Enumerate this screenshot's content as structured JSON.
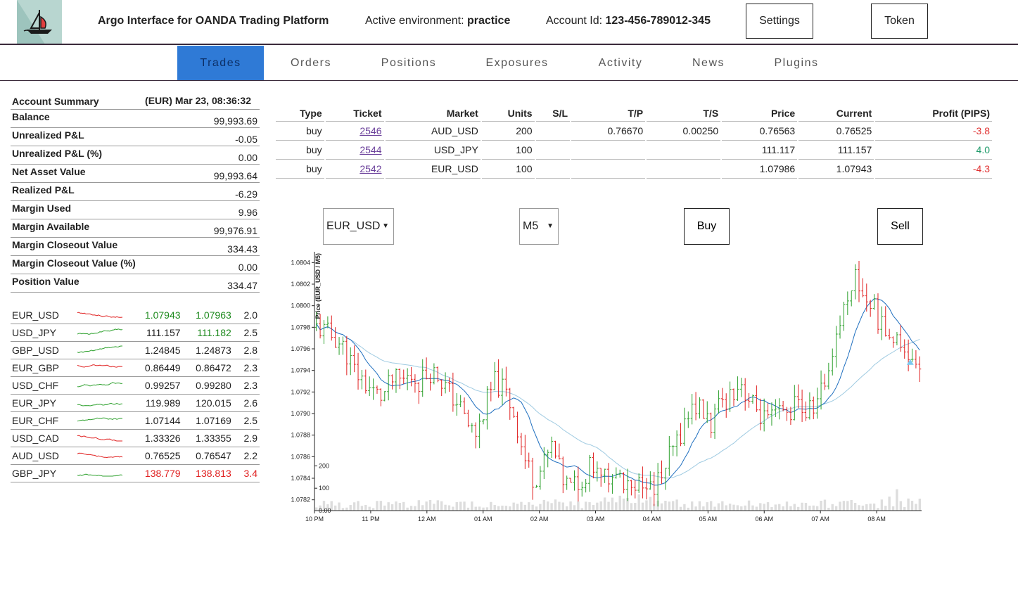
{
  "header": {
    "title": "Argo Interface for OANDA Trading Platform",
    "env_label": "Active environment:",
    "env_value": "practice",
    "account_label": "Account Id:",
    "account_value": "123-456-789012-345",
    "settings_label": "Settings",
    "token_label": "Token",
    "logo_icon": "sailboat-icon"
  },
  "nav": {
    "tabs": [
      {
        "label": "Trades",
        "active": true
      },
      {
        "label": "Orders"
      },
      {
        "label": "Positions"
      },
      {
        "label": "Exposures"
      },
      {
        "label": "Activity"
      },
      {
        "label": "News"
      },
      {
        "label": "Plugins"
      }
    ],
    "active_color": "#2f7ad6"
  },
  "summary": {
    "title": "Account Summary",
    "timestamp": "(EUR) Mar 23, 08:36:32",
    "rows": [
      {
        "label": "Balance",
        "value": "99,993.69"
      },
      {
        "label": "Unrealized P&L",
        "value": "-0.05"
      },
      {
        "label": "Unrealized P&L (%)",
        "value": "0.00"
      },
      {
        "label": "Net Asset Value",
        "value": "99,993.64"
      },
      {
        "label": "Realized P&L",
        "value": "-6.29"
      },
      {
        "label": "Margin Used",
        "value": "9.96"
      },
      {
        "label": "Margin Available",
        "value": "99,976.91"
      },
      {
        "label": "Margin Closeout Value",
        "value": "334.43"
      },
      {
        "label": "Margin Closeout Value (%)",
        "value": "0.00"
      },
      {
        "label": "Position Value",
        "value": "334.47"
      }
    ]
  },
  "quotes": [
    {
      "pair": "EUR_USD",
      "bid": "1.07943",
      "ask": "1.07963",
      "spread": "2.0",
      "dir": "up",
      "spark": "down"
    },
    {
      "pair": "USD_JPY",
      "bid": "111.157",
      "ask": "111.182",
      "spread": "2.5",
      "dir": "ask-up",
      "spark": "up"
    },
    {
      "pair": "GBP_USD",
      "bid": "1.24845",
      "ask": "1.24873",
      "spread": "2.8",
      "dir": "none",
      "spark": "up"
    },
    {
      "pair": "EUR_GBP",
      "bid": "0.86449",
      "ask": "0.86472",
      "spread": "2.3",
      "dir": "none",
      "spark": "down"
    },
    {
      "pair": "USD_CHF",
      "bid": "0.99257",
      "ask": "0.99280",
      "spread": "2.3",
      "dir": "none",
      "spark": "up"
    },
    {
      "pair": "EUR_JPY",
      "bid": "119.989",
      "ask": "120.015",
      "spread": "2.6",
      "dir": "none",
      "spark": "up"
    },
    {
      "pair": "EUR_CHF",
      "bid": "1.07144",
      "ask": "1.07169",
      "spread": "2.5",
      "dir": "none",
      "spark": "up"
    },
    {
      "pair": "USD_CAD",
      "bid": "1.33326",
      "ask": "1.33355",
      "spread": "2.9",
      "dir": "none",
      "spark": "down"
    },
    {
      "pair": "AUD_USD",
      "bid": "0.76525",
      "ask": "0.76547",
      "spread": "2.2",
      "dir": "none",
      "spark": "down"
    },
    {
      "pair": "GBP_JPY",
      "bid": "138.779",
      "ask": "138.813",
      "spread": "3.4",
      "dir": "down",
      "spark": "up"
    }
  ],
  "trades": {
    "columns": [
      "Type",
      "Ticket",
      "Market",
      "Units",
      "S/L",
      "T/P",
      "T/S",
      "Price",
      "Current",
      "Profit (PIPS)"
    ],
    "rows": [
      {
        "type": "buy",
        "ticket": "2546",
        "market": "AUD_USD",
        "units": "200",
        "sl": "",
        "tp": "0.76670",
        "ts": "0.00250",
        "price": "0.76563",
        "current": "0.76525",
        "profit": "-3.8",
        "profit_sign": "neg"
      },
      {
        "type": "buy",
        "ticket": "2544",
        "market": "USD_JPY",
        "units": "100",
        "sl": "",
        "tp": "",
        "ts": "",
        "price": "111.117",
        "current": "111.157",
        "profit": "4.0",
        "profit_sign": "pos"
      },
      {
        "type": "buy",
        "ticket": "2542",
        "market": "EUR_USD",
        "units": "100",
        "sl": "",
        "tp": "",
        "ts": "",
        "price": "1.07986",
        "current": "1.07943",
        "profit": "-4.3",
        "profit_sign": "neg"
      }
    ]
  },
  "controls": {
    "instrument": "EUR_USD",
    "granularity": "M5",
    "buy_label": "Buy",
    "sell_label": "Sell"
  },
  "chart_data": {
    "type": "candlestick",
    "ylabel": "Price (EUR_USD / M5)",
    "yticks": [
      "1.0782",
      "1.0784",
      "1.0786",
      "1.0788",
      "1.0790",
      "1.0792",
      "1.0794",
      "1.0796",
      "1.0798",
      "1.0800",
      "1.0802",
      "1.0804"
    ],
    "ylim": [
      1.0781,
      1.0805
    ],
    "volume_ticks": [
      "0.00",
      "100",
      "200"
    ],
    "volume_ylim": [
      0,
      220
    ],
    "xticks": [
      "10 PM",
      "11 PM",
      "12 AM",
      "01 AM",
      "02 AM",
      "03 AM",
      "04 AM",
      "05 AM",
      "06 AM",
      "07 AM",
      "08 AM"
    ],
    "up_color": "#2ca02c",
    "down_color": "#e02020",
    "ma_fast_color": "#1f6fbf",
    "ma_slow_color": "#9ecae1",
    "volume_color": "#dddddd",
    "close_path": [
      1.0798,
      1.07975,
      1.0797,
      1.0796,
      1.0794,
      1.0793,
      1.0792,
      1.07915,
      1.0793,
      1.0793,
      1.07935,
      1.0793,
      1.0794,
      1.07935,
      1.0792,
      1.0791,
      1.0789,
      1.0788,
      1.0791,
      1.0793,
      1.0792,
      1.079,
      1.0786,
      1.0784,
      1.0785,
      1.0787,
      1.0784,
      1.0783,
      1.0784,
      1.0785,
      1.0784,
      1.0784,
      1.0785,
      1.0783,
      1.0784,
      1.07835,
      1.07835,
      1.0785,
      1.0787,
      1.0789,
      1.0791,
      1.079,
      1.0789,
      1.0791,
      1.0792,
      1.0793,
      1.0791,
      1.079,
      1.0789,
      1.079,
      1.079,
      1.0791,
      1.079,
      1.0791,
      1.0793,
      1.0797,
      1.08,
      1.0803,
      1.0801,
      1.08,
      1.0798,
      1.0797,
      1.0797,
      1.0795,
      1.0795
    ]
  }
}
